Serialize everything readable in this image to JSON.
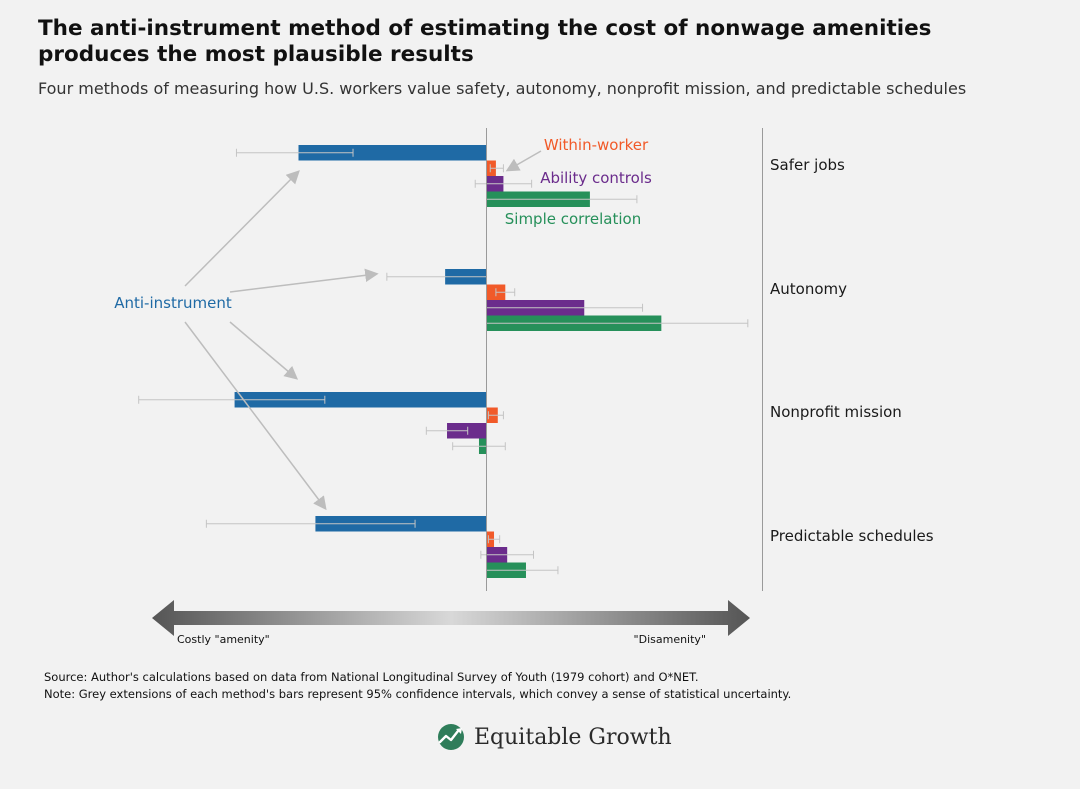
{
  "header": {
    "title": "The anti-instrument method of estimating the cost of nonwage amenities produces the most plausible results",
    "subtitle": "Four methods of measuring how U.S. workers value safety, autonomy, nonprofit mission, and predictable schedules"
  },
  "chart_data": {
    "type": "bar",
    "orientation": "horizontal",
    "categories": [
      "Safer jobs",
      "Autonomy",
      "Nonprofit mission",
      "Predictable schedules"
    ],
    "series": [
      {
        "name": "Anti-instrument",
        "color": "#1f6aa5",
        "values": [
          -1.0,
          -0.22,
          -1.34,
          -0.91
        ],
        "ci": [
          [
            -1.33,
            -0.71
          ],
          [
            -0.53,
            0.0
          ],
          [
            -1.85,
            -0.86
          ],
          [
            -1.49,
            -0.38
          ]
        ]
      },
      {
        "name": "Within-worker",
        "color": "#f15a29",
        "values": [
          0.05,
          0.1,
          0.06,
          0.04
        ],
        "ci": [
          [
            0.02,
            0.09
          ],
          [
            0.05,
            0.15
          ],
          [
            0.01,
            0.09
          ],
          [
            0.01,
            0.07
          ]
        ]
      },
      {
        "name": "Ability controls",
        "color": "#6b2c8c",
        "values": [
          0.09,
          0.52,
          -0.21,
          0.11
        ],
        "ci": [
          [
            -0.06,
            0.24
          ],
          [
            0.0,
            0.83
          ],
          [
            -0.32,
            -0.1
          ],
          [
            -0.03,
            0.25
          ]
        ]
      },
      {
        "name": "Simple correlation",
        "color": "#26905a",
        "values": [
          0.55,
          0.93,
          -0.04,
          0.21
        ],
        "ci": [
          [
            0.0,
            0.8
          ],
          [
            0.0,
            1.39
          ],
          [
            -0.18,
            0.1
          ],
          [
            0.0,
            0.38
          ]
        ]
      }
    ],
    "xlim": [
      -1.85,
      1.46
    ],
    "grid": false,
    "scale_arrow": {
      "left_label": "Costly \"amenity\"",
      "right_label": "\"Disamenity\""
    }
  },
  "footer": {
    "source": "Source: Author's calculations based on data from National Longitudinal Survey of Youth (1979 cohort) and O*NET.",
    "note": "Note: Grey extensions of each method's bars represent 95% confidence intervals, which  convey a sense of statistical uncertainty.",
    "brand": "Equitable Growth"
  }
}
